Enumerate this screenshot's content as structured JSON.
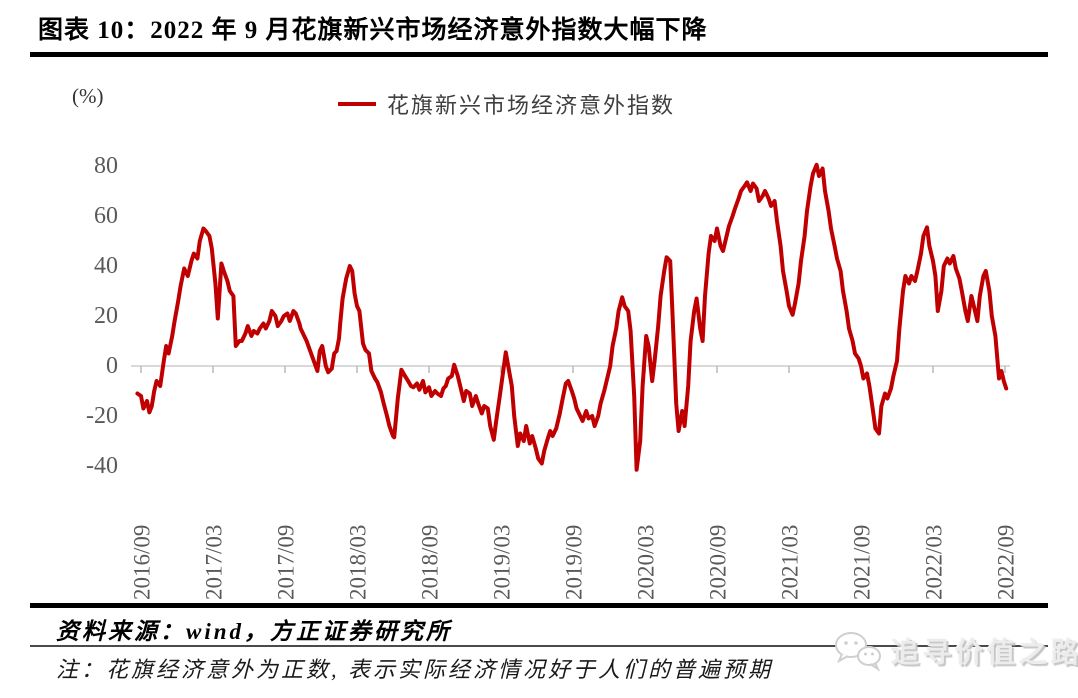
{
  "title": "图表 10：2022 年 9 月花旗新兴市场经济意外指数大幅下降",
  "y_axis_unit": "(%)",
  "legend": {
    "label": "花旗新兴市场经济意外指数"
  },
  "footer": {
    "source": "资料来源：wind，方正证券研究所",
    "note": "注：花旗经济意外为正数, 表示实际经济情况好于人们的普遍预期"
  },
  "watermark": {
    "icon": "wechat-icon",
    "text": "追寻价值之路"
  },
  "colors": {
    "line": "#C00000",
    "axis_text": "#595959",
    "gridline": "#d9d9d9",
    "tick": "#bfbfbf",
    "rule": "#000000"
  },
  "chart_data": {
    "type": "line",
    "title": "花旗新兴市场经济意外指数",
    "series_name": "花旗新兴市场经济意外指数",
    "ylabel": "(%)",
    "y_ticks": [
      80,
      60,
      40,
      20,
      0,
      "-20",
      "-40"
    ],
    "y_tick_values": [
      80,
      60,
      40,
      20,
      0,
      -20,
      -40
    ],
    "ylim": [
      -45,
      88
    ],
    "x_tick_labels": [
      "2016/09",
      "2017/03",
      "2017/09",
      "2018/03",
      "2018/09",
      "2019/03",
      "2019/09",
      "2020/03",
      "2020/09",
      "2021/03",
      "2021/09",
      "2022/03",
      "2022/09"
    ],
    "x_tick_months": [
      0,
      6,
      12,
      18,
      24,
      30,
      36,
      42,
      48,
      54,
      60,
      66,
      72
    ],
    "x_unit": "months since 2016/09, weekly sampling",
    "grid": "zero baseline only, ticks on baseline",
    "legend_position": "top-center",
    "line_color": "#C00000",
    "points": [
      [
        -0.3,
        -11
      ],
      [
        0,
        -12
      ],
      [
        0.2,
        -17
      ],
      [
        0.5,
        -14
      ],
      [
        0.7,
        -18.5
      ],
      [
        0.9,
        -16
      ],
      [
        1.1,
        -10
      ],
      [
        1.3,
        -6
      ],
      [
        1.6,
        -8
      ],
      [
        1.9,
        2
      ],
      [
        2.1,
        8
      ],
      [
        2.3,
        5
      ],
      [
        2.6,
        12
      ],
      [
        2.8,
        18
      ],
      [
        3.1,
        26
      ],
      [
        3.3,
        32
      ],
      [
        3.6,
        39
      ],
      [
        3.9,
        36
      ],
      [
        4.2,
        42
      ],
      [
        4.4,
        45
      ],
      [
        4.7,
        43
      ],
      [
        4.9,
        50
      ],
      [
        5.2,
        55
      ],
      [
        5.4,
        54
      ],
      [
        5.7,
        52
      ],
      [
        5.9,
        47
      ],
      [
        6.2,
        33
      ],
      [
        6.4,
        19
      ],
      [
        6.7,
        41
      ],
      [
        6.9,
        38
      ],
      [
        7.2,
        34
      ],
      [
        7.4,
        30
      ],
      [
        7.7,
        28
      ],
      [
        7.9,
        8
      ],
      [
        8.2,
        10
      ],
      [
        8.4,
        10
      ],
      [
        8.7,
        13
      ],
      [
        8.9,
        16
      ],
      [
        9.2,
        12
      ],
      [
        9.4,
        14
      ],
      [
        9.7,
        13
      ],
      [
        9.9,
        15
      ],
      [
        10.2,
        17
      ],
      [
        10.4,
        15
      ],
      [
        10.7,
        18
      ],
      [
        10.9,
        22
      ],
      [
        11.2,
        20
      ],
      [
        11.4,
        16
      ],
      [
        11.7,
        18
      ],
      [
        11.9,
        20
      ],
      [
        12.2,
        21
      ],
      [
        12.4,
        18
      ],
      [
        12.7,
        22
      ],
      [
        12.9,
        21
      ],
      [
        13.2,
        17
      ],
      [
        13.3,
        15
      ],
      [
        13.6,
        12
      ],
      [
        13.8,
        10
      ],
      [
        14.1,
        6
      ],
      [
        14.4,
        2
      ],
      [
        14.7,
        -2
      ],
      [
        14.9,
        6
      ],
      [
        15.1,
        8
      ],
      [
        15.4,
        0
      ],
      [
        15.6,
        -2.5
      ],
      [
        15.9,
        -1
      ],
      [
        16.1,
        5
      ],
      [
        16.3,
        6
      ],
      [
        16.5,
        11
      ],
      [
        16.6,
        17
      ],
      [
        16.8,
        27
      ],
      [
        17.1,
        35
      ],
      [
        17.4,
        40
      ],
      [
        17.6,
        38
      ],
      [
        17.8,
        29
      ],
      [
        18,
        24
      ],
      [
        18.2,
        22
      ],
      [
        18.5,
        9
      ],
      [
        18.7,
        6.5
      ],
      [
        19,
        5
      ],
      [
        19.2,
        -2
      ],
      [
        19.5,
        -5
      ],
      [
        19.7,
        -6.5
      ],
      [
        20,
        -10.5
      ],
      [
        20.2,
        -14.5
      ],
      [
        20.5,
        -20
      ],
      [
        20.7,
        -24
      ],
      [
        21,
        -28
      ],
      [
        21.1,
        -28.5
      ],
      [
        21.4,
        -13
      ],
      [
        21.7,
        -1.5
      ],
      [
        22,
        -4
      ],
      [
        22.2,
        -5.5
      ],
      [
        22.5,
        -8
      ],
      [
        22.7,
        -8.5
      ],
      [
        23,
        -7
      ],
      [
        23.2,
        -9.5
      ],
      [
        23.5,
        -6
      ],
      [
        23.7,
        -10.5
      ],
      [
        24,
        -8.5
      ],
      [
        24.2,
        -12
      ],
      [
        24.5,
        -10
      ],
      [
        24.7,
        -11
      ],
      [
        25,
        -12
      ],
      [
        25.2,
        -9
      ],
      [
        25.4,
        -8
      ],
      [
        25.6,
        -5
      ],
      [
        25.9,
        -4
      ],
      [
        26.1,
        0.5
      ],
      [
        26.4,
        -4
      ],
      [
        26.6,
        -8
      ],
      [
        26.9,
        -14
      ],
      [
        27.1,
        -10
      ],
      [
        27.4,
        -11
      ],
      [
        27.6,
        -16
      ],
      [
        27.9,
        -12
      ],
      [
        28.1,
        -15
      ],
      [
        28.4,
        -19
      ],
      [
        28.6,
        -16
      ],
      [
        28.9,
        -17
      ],
      [
        29.1,
        -24
      ],
      [
        29.4,
        -29.5
      ],
      [
        29.6,
        -22
      ],
      [
        29.9,
        -12
      ],
      [
        30.1,
        -5
      ],
      [
        30.4,
        5.5
      ],
      [
        30.6,
        0
      ],
      [
        30.9,
        -8
      ],
      [
        31.1,
        -20
      ],
      [
        31.4,
        -32
      ],
      [
        31.6,
        -27
      ],
      [
        31.9,
        -30
      ],
      [
        32.1,
        -24
      ],
      [
        32.4,
        -31
      ],
      [
        32.6,
        -28
      ],
      [
        32.9,
        -33
      ],
      [
        33.1,
        -37
      ],
      [
        33.4,
        -39
      ],
      [
        33.6,
        -34
      ],
      [
        33.9,
        -29
      ],
      [
        34.1,
        -26
      ],
      [
        34.3,
        -28
      ],
      [
        34.6,
        -25
      ],
      [
        34.9,
        -19
      ],
      [
        35.1,
        -14
      ],
      [
        35.4,
        -7
      ],
      [
        35.6,
        -6
      ],
      [
        35.9,
        -10
      ],
      [
        36.1,
        -13
      ],
      [
        36.3,
        -17
      ],
      [
        36.6,
        -20
      ],
      [
        36.8,
        -22
      ],
      [
        37.1,
        -18
      ],
      [
        37.3,
        -21
      ],
      [
        37.6,
        -20
      ],
      [
        37.8,
        -24
      ],
      [
        38.1,
        -20
      ],
      [
        38.3,
        -15
      ],
      [
        38.6,
        -10
      ],
      [
        38.8,
        -6
      ],
      [
        39.1,
        0
      ],
      [
        39.3,
        8
      ],
      [
        39.6,
        15
      ],
      [
        39.8,
        22
      ],
      [
        40.1,
        27.5
      ],
      [
        40.3,
        24
      ],
      [
        40.6,
        22
      ],
      [
        40.8,
        14
      ],
      [
        41.1,
        -12
      ],
      [
        41.3,
        -41.5
      ],
      [
        41.6,
        -30
      ],
      [
        41.8,
        -8
      ],
      [
        42.1,
        12
      ],
      [
        42.3,
        8
      ],
      [
        42.6,
        -6
      ],
      [
        42.8,
        2
      ],
      [
        43.1,
        16
      ],
      [
        43.3,
        28
      ],
      [
        43.6,
        38
      ],
      [
        43.8,
        43.5
      ],
      [
        44.1,
        42
      ],
      [
        44.3,
        20
      ],
      [
        44.6,
        -15
      ],
      [
        44.8,
        -26
      ],
      [
        45.1,
        -18
      ],
      [
        45.3,
        -24
      ],
      [
        45.6,
        -8
      ],
      [
        45.8,
        10
      ],
      [
        46.1,
        22
      ],
      [
        46.3,
        27
      ],
      [
        46.6,
        15
      ],
      [
        46.8,
        10
      ],
      [
        47,
        28
      ],
      [
        47.3,
        45
      ],
      [
        47.5,
        52
      ],
      [
        47.8,
        50
      ],
      [
        48,
        55
      ],
      [
        48.3,
        48
      ],
      [
        48.5,
        46
      ],
      [
        48.8,
        52
      ],
      [
        49,
        56
      ],
      [
        49.3,
        60
      ],
      [
        49.5,
        63
      ],
      [
        49.8,
        67
      ],
      [
        50,
        70
      ],
      [
        50.3,
        72
      ],
      [
        50.5,
        73.5
      ],
      [
        50.8,
        70
      ],
      [
        51,
        73
      ],
      [
        51.3,
        71
      ],
      [
        51.5,
        66
      ],
      [
        51.8,
        68
      ],
      [
        52,
        70
      ],
      [
        52.3,
        67
      ],
      [
        52.5,
        64
      ],
      [
        52.8,
        66
      ],
      [
        53,
        58
      ],
      [
        53.3,
        48
      ],
      [
        53.5,
        38
      ],
      [
        53.8,
        30
      ],
      [
        54,
        24
      ],
      [
        54.3,
        20.5
      ],
      [
        54.5,
        25
      ],
      [
        54.8,
        33
      ],
      [
        55,
        42
      ],
      [
        55.3,
        52
      ],
      [
        55.5,
        62
      ],
      [
        55.8,
        72
      ],
      [
        56,
        77
      ],
      [
        56.3,
        80.5
      ],
      [
        56.5,
        76
      ],
      [
        56.8,
        79
      ],
      [
        57,
        70
      ],
      [
        57.3,
        62
      ],
      [
        57.5,
        55
      ],
      [
        57.8,
        48
      ],
      [
        58,
        43
      ],
      [
        58.3,
        38
      ],
      [
        58.5,
        30
      ],
      [
        58.8,
        22
      ],
      [
        59,
        15
      ],
      [
        59.3,
        10
      ],
      [
        59.5,
        5
      ],
      [
        59.8,
        3
      ],
      [
        60,
        0
      ],
      [
        60.2,
        -5
      ],
      [
        60.5,
        -3
      ],
      [
        60.7,
        -8
      ],
      [
        61,
        -18
      ],
      [
        61.2,
        -25
      ],
      [
        61.5,
        -27
      ],
      [
        61.7,
        -16
      ],
      [
        62,
        -11
      ],
      [
        62.2,
        -13
      ],
      [
        62.5,
        -9
      ],
      [
        62.7,
        -4
      ],
      [
        63,
        2
      ],
      [
        63.2,
        15
      ],
      [
        63.5,
        30
      ],
      [
        63.7,
        36
      ],
      [
        64,
        33
      ],
      [
        64.2,
        36
      ],
      [
        64.5,
        34
      ],
      [
        64.7,
        38
      ],
      [
        65,
        45
      ],
      [
        65.2,
        52
      ],
      [
        65.5,
        55.5
      ],
      [
        65.7,
        48
      ],
      [
        66,
        42
      ],
      [
        66.2,
        36
      ],
      [
        66.4,
        22
      ],
      [
        66.7,
        30
      ],
      [
        66.9,
        40
      ],
      [
        67.2,
        43
      ],
      [
        67.4,
        41
      ],
      [
        67.7,
        44
      ],
      [
        67.9,
        39
      ],
      [
        68.2,
        35
      ],
      [
        68.4,
        30
      ],
      [
        68.7,
        22
      ],
      [
        68.9,
        18
      ],
      [
        69.2,
        28
      ],
      [
        69.4,
        24
      ],
      [
        69.7,
        18
      ],
      [
        69.9,
        28
      ],
      [
        70.2,
        36
      ],
      [
        70.4,
        38
      ],
      [
        70.7,
        30
      ],
      [
        70.9,
        20
      ],
      [
        71.2,
        12
      ],
      [
        71.5,
        -5
      ],
      [
        71.7,
        -2
      ],
      [
        71.9,
        -6
      ],
      [
        72.1,
        -9
      ]
    ]
  }
}
